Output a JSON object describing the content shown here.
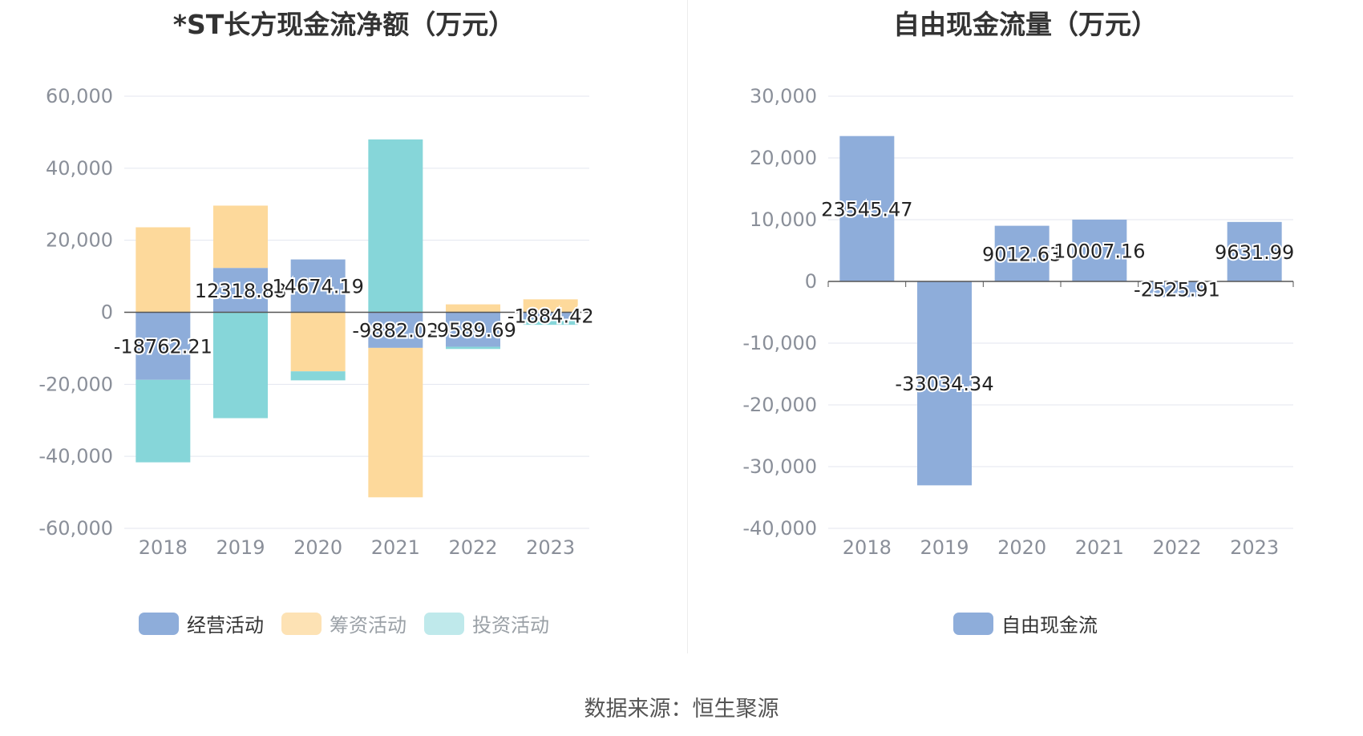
{
  "source": "数据来源：恒生聚源",
  "chart_data": [
    {
      "type": "bar",
      "stacked": true,
      "title": "*ST长方现金流净额（万元）",
      "categories": [
        "2018",
        "2019",
        "2020",
        "2021",
        "2022",
        "2023"
      ],
      "ylim": [
        -60000,
        60000
      ],
      "yticks": [
        60000,
        40000,
        20000,
        0,
        -20000,
        -40000,
        -60000
      ],
      "ytick_labels": [
        "60,000",
        "40,000",
        "20,000",
        "0",
        "-20,000",
        "-40,000",
        "-60,000"
      ],
      "grid": true,
      "legend_position": "bottom",
      "series": [
        {
          "name": "经营活动",
          "color": "#8eadda",
          "values": [
            -18762.21,
            12318.88,
            14674.19,
            -9882.02,
            -9589.69,
            -1884.42
          ]
        },
        {
          "name": "筹资活动",
          "color": "#fdd99b",
          "values": [
            23600,
            17300,
            -16400,
            -41500,
            2200,
            3600
          ]
        },
        {
          "name": "投资活动",
          "color": "#86d6d9",
          "values": [
            -22900,
            -29400,
            -2500,
            48000,
            -600,
            -1600
          ]
        }
      ],
      "data_labels": [
        "-18762.21",
        "12318.88",
        "14674.19",
        "-9882.02",
        "-9589.69",
        "-1884.42"
      ]
    },
    {
      "type": "bar",
      "title": "自由现金流量（万元）",
      "categories": [
        "2018",
        "2019",
        "2020",
        "2021",
        "2022",
        "2023"
      ],
      "ylim": [
        -40000,
        30000
      ],
      "yticks": [
        30000,
        20000,
        10000,
        0,
        -10000,
        -20000,
        -30000,
        -40000
      ],
      "ytick_labels": [
        "30,000",
        "20,000",
        "10,000",
        "0",
        "-10,000",
        "-20,000",
        "-30,000",
        "-40,000"
      ],
      "grid": true,
      "legend_position": "bottom",
      "series": [
        {
          "name": "自由现金流",
          "color": "#8eadda",
          "values": [
            23545.47,
            -33034.34,
            9012.63,
            10007.16,
            -2525.91,
            9631.99
          ]
        }
      ],
      "data_labels": [
        "23545.47",
        "-33034.34",
        "9012.63",
        "10007.16",
        "-2525.91",
        "9631.99"
      ]
    }
  ]
}
